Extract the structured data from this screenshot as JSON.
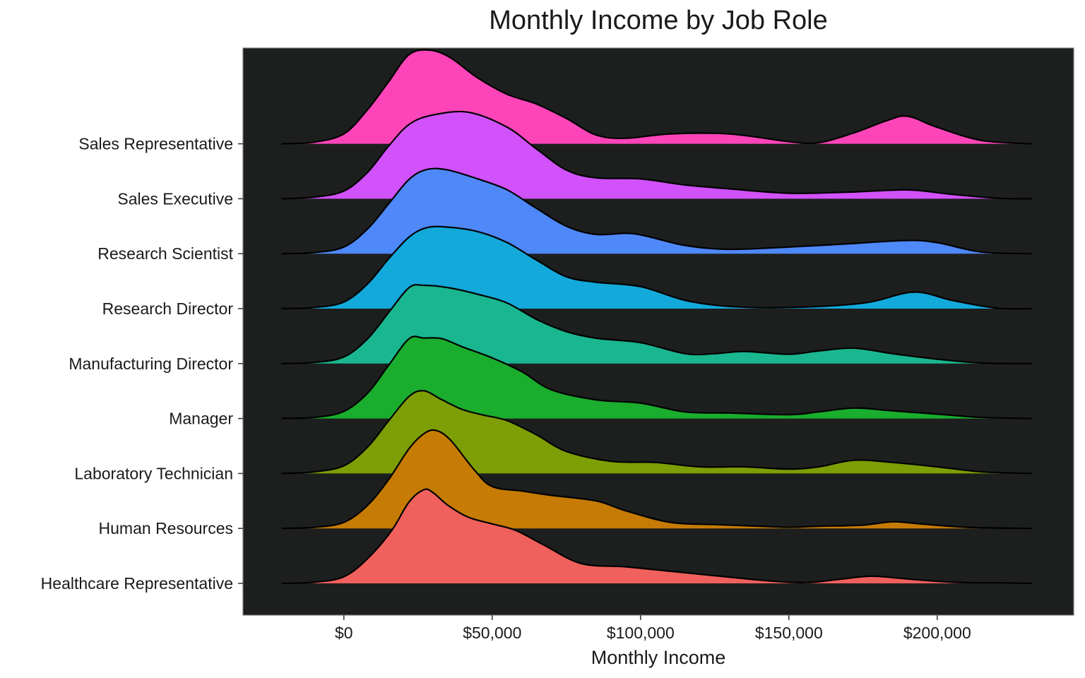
{
  "chart_data": {
    "type": "ridgeline",
    "title": "Monthly Income by Job Role",
    "xlabel": "Monthly Income",
    "ylabel": "",
    "xlim": [
      -34000,
      246000
    ],
    "x_ticks": [
      0,
      50000,
      100000,
      150000,
      200000
    ],
    "x_tick_labels": [
      "$0",
      "$50,000",
      "$100,000",
      "$150,000",
      "$200,000"
    ],
    "panel_background": "#1d1f1f",
    "grid": false,
    "legend": "none",
    "series": [
      {
        "name": "Healthcare Representative",
        "color": "#f0605c",
        "points": [
          [
            -21000,
            0
          ],
          [
            -10000,
            0.02
          ],
          [
            0,
            0.12
          ],
          [
            8000,
            0.45
          ],
          [
            16000,
            0.95
          ],
          [
            22000,
            1.48
          ],
          [
            27000,
            1.7
          ],
          [
            30000,
            1.65
          ],
          [
            35000,
            1.42
          ],
          [
            42000,
            1.2
          ],
          [
            50000,
            1.08
          ],
          [
            58000,
            0.96
          ],
          [
            68000,
            0.68
          ],
          [
            80000,
            0.36
          ],
          [
            95000,
            0.3
          ],
          [
            110000,
            0.22
          ],
          [
            125000,
            0.14
          ],
          [
            140000,
            0.06
          ],
          [
            150000,
            0.02
          ],
          [
            158000,
            0.02
          ],
          [
            168000,
            0.08
          ],
          [
            178000,
            0.13
          ],
          [
            190000,
            0.08
          ],
          [
            205000,
            0.02
          ],
          [
            220000,
            0.01
          ],
          [
            232000,
            0
          ]
        ]
      },
      {
        "name": "Human Resources",
        "color": "#c57b04",
        "points": [
          [
            -21000,
            0
          ],
          [
            -10000,
            0.02
          ],
          [
            0,
            0.11
          ],
          [
            8000,
            0.42
          ],
          [
            15000,
            0.88
          ],
          [
            22000,
            1.45
          ],
          [
            27000,
            1.72
          ],
          [
            31000,
            1.78
          ],
          [
            36000,
            1.6
          ],
          [
            44000,
            1.06
          ],
          [
            50000,
            0.76
          ],
          [
            60000,
            0.68
          ],
          [
            70000,
            0.6
          ],
          [
            85000,
            0.5
          ],
          [
            95000,
            0.32
          ],
          [
            110000,
            0.11
          ],
          [
            125000,
            0.07
          ],
          [
            140000,
            0.04
          ],
          [
            150000,
            0.02
          ],
          [
            160000,
            0.04
          ],
          [
            175000,
            0.06
          ],
          [
            185000,
            0.12
          ],
          [
            195000,
            0.08
          ],
          [
            210000,
            0.02
          ],
          [
            232000,
            0
          ]
        ]
      },
      {
        "name": "Laboratory Technician",
        "color": "#7e9e05",
        "points": [
          [
            -21000,
            0
          ],
          [
            -10000,
            0.03
          ],
          [
            0,
            0.14
          ],
          [
            8000,
            0.48
          ],
          [
            15000,
            0.95
          ],
          [
            22000,
            1.4
          ],
          [
            27000,
            1.5
          ],
          [
            33000,
            1.34
          ],
          [
            40000,
            1.16
          ],
          [
            47000,
            1.06
          ],
          [
            55000,
            0.96
          ],
          [
            65000,
            0.7
          ],
          [
            75000,
            0.4
          ],
          [
            90000,
            0.22
          ],
          [
            105000,
            0.2
          ],
          [
            120000,
            0.12
          ],
          [
            135000,
            0.12
          ],
          [
            150000,
            0.08
          ],
          [
            160000,
            0.12
          ],
          [
            172000,
            0.24
          ],
          [
            185000,
            0.2
          ],
          [
            200000,
            0.12
          ],
          [
            215000,
            0.03
          ],
          [
            232000,
            0
          ]
        ]
      },
      {
        "name": "Manager",
        "color": "#1aad2e",
        "points": [
          [
            -21000,
            0
          ],
          [
            -10000,
            0.02
          ],
          [
            0,
            0.13
          ],
          [
            8000,
            0.46
          ],
          [
            15000,
            0.96
          ],
          [
            22000,
            1.45
          ],
          [
            27000,
            1.46
          ],
          [
            33000,
            1.45
          ],
          [
            40000,
            1.3
          ],
          [
            50000,
            1.1
          ],
          [
            60000,
            0.85
          ],
          [
            70000,
            0.52
          ],
          [
            85000,
            0.34
          ],
          [
            100000,
            0.28
          ],
          [
            115000,
            0.12
          ],
          [
            130000,
            0.1
          ],
          [
            150000,
            0.07
          ],
          [
            160000,
            0.12
          ],
          [
            172000,
            0.19
          ],
          [
            185000,
            0.14
          ],
          [
            200000,
            0.08
          ],
          [
            215000,
            0.02
          ],
          [
            232000,
            0
          ]
        ]
      },
      {
        "name": "Manufacturing Director",
        "color": "#1ab68f",
        "points": [
          [
            -21000,
            0
          ],
          [
            -10000,
            0.02
          ],
          [
            0,
            0.12
          ],
          [
            8000,
            0.45
          ],
          [
            15000,
            0.92
          ],
          [
            22000,
            1.38
          ],
          [
            27000,
            1.42
          ],
          [
            35000,
            1.38
          ],
          [
            45000,
            1.26
          ],
          [
            55000,
            1.1
          ],
          [
            65000,
            0.8
          ],
          [
            75000,
            0.58
          ],
          [
            85000,
            0.46
          ],
          [
            100000,
            0.38
          ],
          [
            115000,
            0.18
          ],
          [
            125000,
            0.18
          ],
          [
            135000,
            0.22
          ],
          [
            150000,
            0.17
          ],
          [
            160000,
            0.23
          ],
          [
            172000,
            0.28
          ],
          [
            185000,
            0.18
          ],
          [
            200000,
            0.08
          ],
          [
            215000,
            0.01
          ],
          [
            232000,
            0
          ]
        ]
      },
      {
        "name": "Research Director",
        "color": "#13a9da",
        "points": [
          [
            -21000,
            0
          ],
          [
            -10000,
            0.02
          ],
          [
            0,
            0.12
          ],
          [
            8000,
            0.45
          ],
          [
            15000,
            0.9
          ],
          [
            22000,
            1.3
          ],
          [
            28000,
            1.47
          ],
          [
            35000,
            1.48
          ],
          [
            45000,
            1.4
          ],
          [
            55000,
            1.2
          ],
          [
            65000,
            0.88
          ],
          [
            75000,
            0.58
          ],
          [
            85000,
            0.48
          ],
          [
            100000,
            0.4
          ],
          [
            115000,
            0.15
          ],
          [
            130000,
            0.04
          ],
          [
            150000,
            0.02
          ],
          [
            175000,
            0.1
          ],
          [
            192000,
            0.3
          ],
          [
            205000,
            0.15
          ],
          [
            220000,
            0.01
          ],
          [
            232000,
            0
          ]
        ]
      },
      {
        "name": "Research Scientist",
        "color": "#4f88f8",
        "points": [
          [
            -21000,
            0
          ],
          [
            -10000,
            0.02
          ],
          [
            0,
            0.12
          ],
          [
            8000,
            0.45
          ],
          [
            15000,
            0.9
          ],
          [
            22000,
            1.35
          ],
          [
            28000,
            1.53
          ],
          [
            35000,
            1.52
          ],
          [
            45000,
            1.36
          ],
          [
            55000,
            1.16
          ],
          [
            65000,
            0.82
          ],
          [
            75000,
            0.5
          ],
          [
            85000,
            0.35
          ],
          [
            98000,
            0.36
          ],
          [
            115000,
            0.15
          ],
          [
            130000,
            0.08
          ],
          [
            150000,
            0.12
          ],
          [
            170000,
            0.18
          ],
          [
            190000,
            0.24
          ],
          [
            200000,
            0.2
          ],
          [
            215000,
            0.03
          ],
          [
            232000,
            0
          ]
        ]
      },
      {
        "name": "Sales Executive",
        "color": "#d152fa",
        "points": [
          [
            -21000,
            0
          ],
          [
            -10000,
            0.03
          ],
          [
            0,
            0.14
          ],
          [
            8000,
            0.48
          ],
          [
            15000,
            0.95
          ],
          [
            22000,
            1.35
          ],
          [
            30000,
            1.52
          ],
          [
            42000,
            1.57
          ],
          [
            55000,
            1.3
          ],
          [
            65000,
            0.9
          ],
          [
            75000,
            0.52
          ],
          [
            85000,
            0.38
          ],
          [
            100000,
            0.36
          ],
          [
            115000,
            0.25
          ],
          [
            130000,
            0.18
          ],
          [
            150000,
            0.1
          ],
          [
            170000,
            0.12
          ],
          [
            190000,
            0.16
          ],
          [
            205000,
            0.08
          ],
          [
            220000,
            0.01
          ],
          [
            232000,
            0
          ]
        ]
      },
      {
        "name": "Sales Representative",
        "color": "#fd45b9",
        "points": [
          [
            -21000,
            0
          ],
          [
            -10000,
            0.03
          ],
          [
            0,
            0.18
          ],
          [
            8000,
            0.62
          ],
          [
            15000,
            1.12
          ],
          [
            22000,
            1.62
          ],
          [
            29000,
            1.7
          ],
          [
            36000,
            1.56
          ],
          [
            45000,
            1.2
          ],
          [
            55000,
            0.9
          ],
          [
            65000,
            0.72
          ],
          [
            75000,
            0.46
          ],
          [
            85000,
            0.16
          ],
          [
            95000,
            0.1
          ],
          [
            110000,
            0.18
          ],
          [
            130000,
            0.18
          ],
          [
            150000,
            0.04
          ],
          [
            160000,
            0.02
          ],
          [
            172000,
            0.2
          ],
          [
            183000,
            0.42
          ],
          [
            190000,
            0.5
          ],
          [
            200000,
            0.3
          ],
          [
            215000,
            0.06
          ],
          [
            232000,
            0
          ]
        ]
      }
    ]
  }
}
